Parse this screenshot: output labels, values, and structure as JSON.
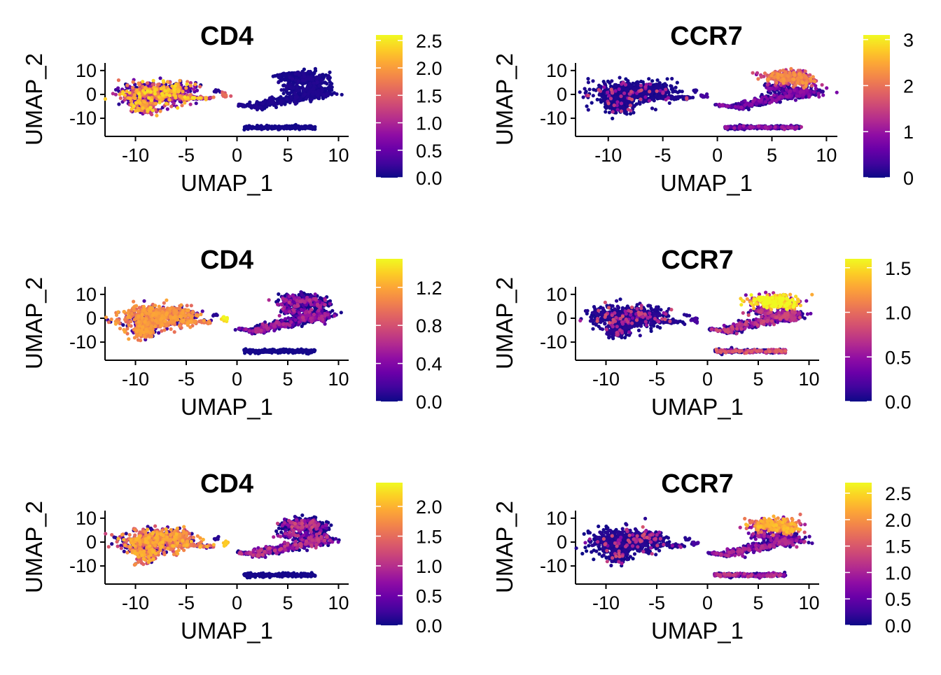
{
  "figure": {
    "colormap": [
      "#0D0887",
      "#41049D",
      "#6A00A8",
      "#8F0DA4",
      "#B12A90",
      "#CC4778",
      "#E16462",
      "#F2844B",
      "#FCA636",
      "#FCCE25",
      "#F0F921"
    ]
  },
  "chart_data": [
    {
      "type": "scatter",
      "title": "CD4",
      "xlabel": "UMAP_1",
      "ylabel": "UMAP_2",
      "xticks": [
        "-10",
        "-5",
        "0",
        "5",
        "10"
      ],
      "yticks": [
        "10",
        "0",
        "-10"
      ],
      "xlim": [
        -13,
        11
      ],
      "ylim": [
        -17,
        12
      ],
      "colorbar": {
        "ticks": [
          "0.0",
          "0.5",
          "1.0",
          "1.5",
          "2.0",
          "2.5"
        ],
        "range": [
          0,
          2.6
        ]
      },
      "feature": "CD4",
      "left_cluster_level": 0.5,
      "left_cluster_spread": 0.45,
      "small_cluster_level": 0.6,
      "right_cluster_level": 0.03,
      "bottom_cluster_level": 0.02
    },
    {
      "type": "scatter",
      "title": "CCR7",
      "xlabel": "UMAP_1",
      "ylabel": "UMAP_2",
      "xticks": [
        "-10",
        "-5",
        "0",
        "5",
        "10"
      ],
      "yticks": [
        "10",
        "0",
        "-10"
      ],
      "xlim": [
        -13,
        11
      ],
      "ylim": [
        -17,
        12
      ],
      "colorbar": {
        "ticks": [
          "0",
          "1",
          "2",
          "3"
        ],
        "range": [
          0,
          3.1
        ]
      },
      "feature": "CCR7",
      "left_cluster_level": 0.04,
      "top_cluster_level": 0.6,
      "trunk_level": 0.15,
      "bottom_cluster_level": 0.2
    },
    {
      "type": "scatter",
      "title": "CD4",
      "xlabel": "UMAP_1",
      "ylabel": "UMAP_2",
      "xticks": [
        "-10",
        "-5",
        "0",
        "5",
        "10"
      ],
      "yticks": [
        "10",
        "0",
        "-10"
      ],
      "xlim": [
        -13,
        11
      ],
      "ylim": [
        -17,
        12
      ],
      "colorbar": {
        "ticks": [
          "0.0",
          "0.4",
          "0.8",
          "1.2"
        ],
        "range": [
          0,
          1.5
        ]
      },
      "feature": "CD4",
      "left_cluster_level": 0.7,
      "left_cluster_spread": 0.1,
      "small_cluster_level": 0.95,
      "right_cluster_level": 0.3,
      "bottom_cluster_level": 0.02
    },
    {
      "type": "scatter",
      "title": "CCR7",
      "xlabel": "UMAP_1",
      "ylabel": "UMAP_2",
      "xticks": [
        "-10",
        "-5",
        "0",
        "5",
        "10"
      ],
      "yticks": [
        "10",
        "0",
        "-10"
      ],
      "xlim": [
        -13,
        11
      ],
      "ylim": [
        -17,
        12
      ],
      "colorbar": {
        "ticks": [
          "0.0",
          "0.5",
          "1.0",
          "1.5"
        ],
        "range": [
          0,
          1.6
        ]
      },
      "feature": "CCR7",
      "left_cluster_level": 0.06,
      "top_cluster_level": 0.9,
      "trunk_level": 0.35,
      "bottom_cluster_level": 0.45
    },
    {
      "type": "scatter",
      "title": "CD4",
      "xlabel": "UMAP_1",
      "ylabel": "UMAP_2",
      "xticks": [
        "-10",
        "-5",
        "0",
        "5",
        "10"
      ],
      "yticks": [
        "10",
        "0",
        "-10"
      ],
      "xlim": [
        -13,
        11
      ],
      "ylim": [
        -17,
        12
      ],
      "colorbar": {
        "ticks": [
          "0.0",
          "0.5",
          "1.0",
          "1.5",
          "2.0"
        ],
        "range": [
          0,
          2.4
        ]
      },
      "feature": "CD4",
      "left_cluster_level": 0.65,
      "left_cluster_spread": 0.2,
      "small_cluster_level": 0.85,
      "right_cluster_level": 0.35,
      "bottom_cluster_level": 0.02
    },
    {
      "type": "scatter",
      "title": "CCR7",
      "xlabel": "UMAP_1",
      "ylabel": "UMAP_2",
      "xticks": [
        "-10",
        "-5",
        "0",
        "5",
        "10"
      ],
      "yticks": [
        "10",
        "0",
        "-10"
      ],
      "xlim": [
        -13,
        11
      ],
      "ylim": [
        -17,
        12
      ],
      "colorbar": {
        "ticks": [
          "0.0",
          "0.5",
          "1.0",
          "1.5",
          "2.0",
          "2.5"
        ],
        "range": [
          0,
          2.7
        ]
      },
      "feature": "CCR7",
      "left_cluster_level": 0.06,
      "top_cluster_level": 0.7,
      "trunk_level": 0.25,
      "bottom_cluster_level": 0.3
    }
  ]
}
